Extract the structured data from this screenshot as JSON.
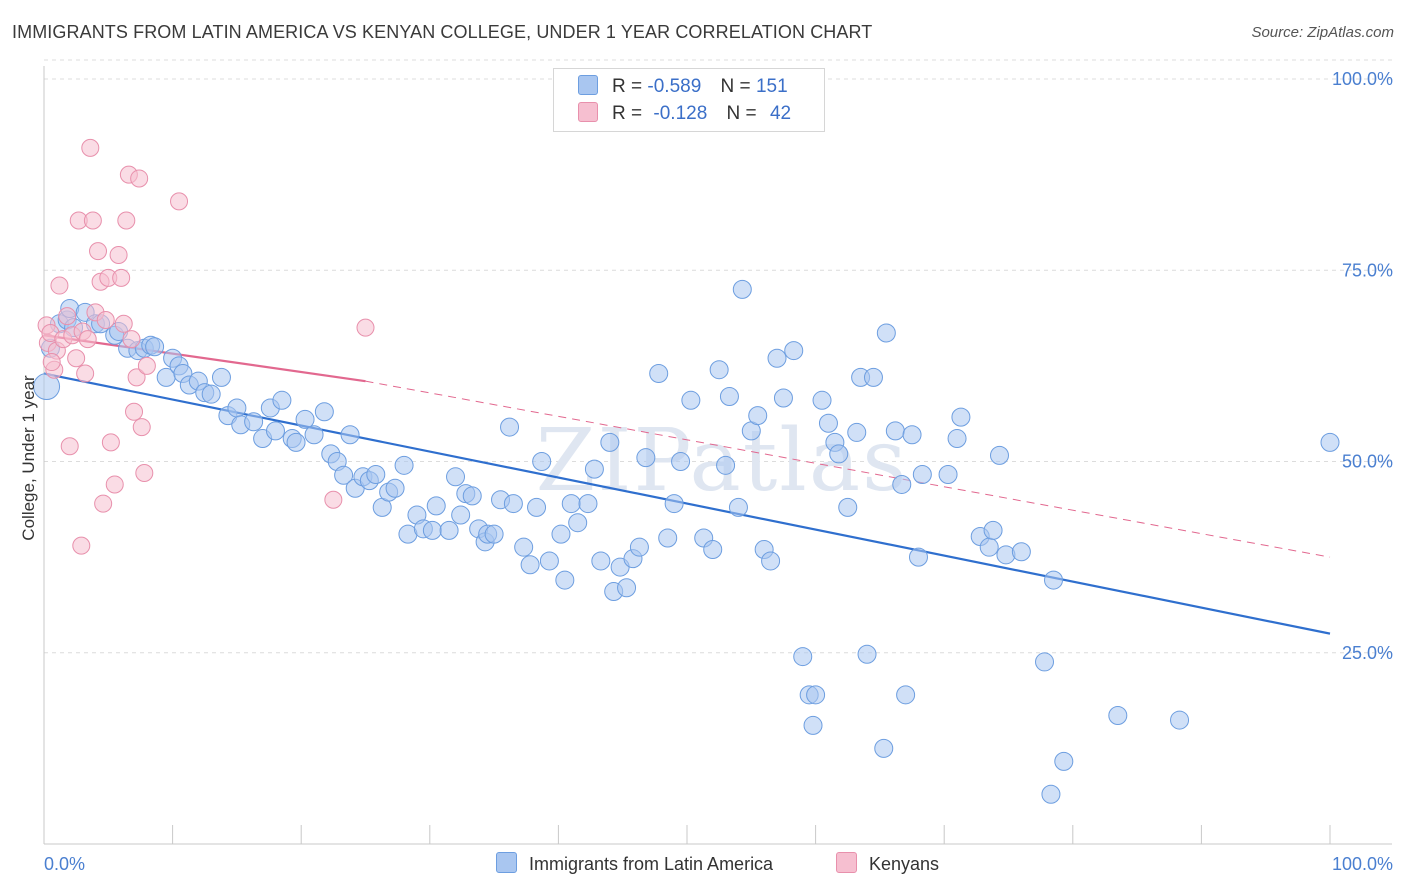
{
  "header": {
    "title": "IMMIGRANTS FROM LATIN AMERICA VS KENYAN COLLEGE, UNDER 1 YEAR CORRELATION CHART",
    "source": "Source: ZipAtlas.com"
  },
  "watermark": "ZIPatlas",
  "legend": {
    "rows": [
      {
        "r_label": "R =",
        "r_value": "-0.589",
        "n_label": "N =",
        "n_value": "151",
        "color": "#a9c6f0"
      },
      {
        "r_label": "R =",
        "r_value": "-0.128",
        "n_label": "N =",
        "n_value": "42",
        "color": "#f4b8cb"
      }
    ]
  },
  "bottom_legend": {
    "series1": "Immigrants from Latin America",
    "series2": "Kenyans"
  },
  "colors": {
    "blue_fill": "#a9c6f0",
    "blue_stroke": "#6d9ee0",
    "blue_line": "#2f6fce",
    "pink_fill": "#f6bfd0",
    "pink_stroke": "#e890ac",
    "pink_line": "#e2688f",
    "axis_text": "#4a7fd0"
  },
  "chart_data": {
    "type": "scatter",
    "title": "IMMIGRANTS FROM LATIN AMERICA VS KENYAN COLLEGE, UNDER 1 YEAR CORRELATION CHART",
    "xlabel": "",
    "ylabel": "College, Under 1 year",
    "xlim": [
      0,
      100
    ],
    "ylim": [
      0,
      105
    ],
    "x_tick_labels": [
      "0.0%",
      "100.0%"
    ],
    "y_ticks": [
      25,
      50,
      75,
      100
    ],
    "y_tick_labels": [
      "25.0%",
      "50.0%",
      "75.0%",
      "100.0%"
    ],
    "grid": "horizontal dashed",
    "legend_position": "top-center",
    "series": [
      {
        "name": "Immigrants from Latin America",
        "color": "#a9c6f0",
        "trend": {
          "x": [
            0,
            100
          ],
          "y": [
            61.5,
            27.5
          ]
        },
        "points": [
          [
            0.2,
            59.8
          ],
          [
            0.5,
            64.8
          ],
          [
            1.2,
            68
          ],
          [
            1.8,
            68.5
          ],
          [
            2.0,
            70
          ],
          [
            2.3,
            67.5
          ],
          [
            3.2,
            69.5
          ],
          [
            4.0,
            68
          ],
          [
            4.4,
            68
          ],
          [
            5.5,
            66.5
          ],
          [
            5.8,
            67
          ],
          [
            6.5,
            64.8
          ],
          [
            7.3,
            64.5
          ],
          [
            7.8,
            64.8
          ],
          [
            8.3,
            65.2
          ],
          [
            8.6,
            65
          ],
          [
            9.5,
            61
          ],
          [
            10,
            63.5
          ],
          [
            10.5,
            62.5
          ],
          [
            10.8,
            61.5
          ],
          [
            11.3,
            60
          ],
          [
            12.0,
            60.5
          ],
          [
            12.5,
            59
          ],
          [
            13.0,
            58.8
          ],
          [
            13.8,
            61
          ],
          [
            14.3,
            56
          ],
          [
            15.0,
            57
          ],
          [
            15.3,
            54.8
          ],
          [
            16.3,
            55.2
          ],
          [
            17.0,
            53
          ],
          [
            17.6,
            57
          ],
          [
            18.0,
            54
          ],
          [
            18.5,
            58
          ],
          [
            19.3,
            53
          ],
          [
            19.6,
            52.5
          ],
          [
            20.3,
            55.5
          ],
          [
            21,
            53.5
          ],
          [
            21.8,
            56.5
          ],
          [
            22.3,
            51
          ],
          [
            22.8,
            50
          ],
          [
            23.3,
            48.2
          ],
          [
            23.8,
            53.5
          ],
          [
            24.2,
            46.5
          ],
          [
            24.8,
            48
          ],
          [
            25.3,
            47.5
          ],
          [
            25.8,
            48.3
          ],
          [
            26.3,
            44
          ],
          [
            26.8,
            46
          ],
          [
            27.3,
            46.5
          ],
          [
            28.0,
            49.5
          ],
          [
            28.3,
            40.5
          ],
          [
            29.0,
            43
          ],
          [
            29.5,
            41.2
          ],
          [
            30.2,
            41
          ],
          [
            30.5,
            44.2
          ],
          [
            31.5,
            41
          ],
          [
            32.0,
            48
          ],
          [
            32.4,
            43
          ],
          [
            32.8,
            45.8
          ],
          [
            33.3,
            45.5
          ],
          [
            33.8,
            41.2
          ],
          [
            34.3,
            39.5
          ],
          [
            34.5,
            40.5
          ],
          [
            35.0,
            40.5
          ],
          [
            35.5,
            45
          ],
          [
            36.2,
            54.5
          ],
          [
            36.5,
            44.5
          ],
          [
            37.3,
            38.8
          ],
          [
            37.8,
            36.5
          ],
          [
            38.3,
            44
          ],
          [
            38.7,
            50
          ],
          [
            39.3,
            37
          ],
          [
            40.2,
            40.5
          ],
          [
            40.5,
            34.5
          ],
          [
            41.0,
            44.5
          ],
          [
            41.5,
            42
          ],
          [
            42.3,
            44.5
          ],
          [
            42.8,
            49
          ],
          [
            43.3,
            37
          ],
          [
            44.0,
            52.5
          ],
          [
            44.3,
            33
          ],
          [
            44.8,
            36.2
          ],
          [
            45.3,
            33.5
          ],
          [
            45.8,
            37.3
          ],
          [
            46.3,
            38.8
          ],
          [
            46.8,
            50.5
          ],
          [
            47.8,
            61.5
          ],
          [
            48.5,
            40
          ],
          [
            49.0,
            44.5
          ],
          [
            49.5,
            50
          ],
          [
            50.3,
            58
          ],
          [
            51.3,
            40
          ],
          [
            52.0,
            38.5
          ],
          [
            52.5,
            62
          ],
          [
            53.0,
            49.5
          ],
          [
            53.3,
            58.5
          ],
          [
            54.0,
            44
          ],
          [
            54.3,
            72.5
          ],
          [
            55.0,
            54
          ],
          [
            55.5,
            56
          ],
          [
            56.0,
            38.5
          ],
          [
            56.5,
            37
          ],
          [
            57.0,
            63.5
          ],
          [
            57.5,
            58.3
          ],
          [
            58.3,
            64.5
          ],
          [
            59.0,
            24.5
          ],
          [
            59.5,
            19.5
          ],
          [
            59.8,
            15.5
          ],
          [
            60.0,
            19.5
          ],
          [
            60.5,
            58
          ],
          [
            61.0,
            55
          ],
          [
            61.5,
            52.5
          ],
          [
            61.8,
            51
          ],
          [
            62.5,
            44
          ],
          [
            63.2,
            53.8
          ],
          [
            63.5,
            61
          ],
          [
            64.0,
            24.8
          ],
          [
            64.5,
            61
          ],
          [
            65.3,
            12.5
          ],
          [
            65.5,
            66.8
          ],
          [
            66.2,
            54
          ],
          [
            66.7,
            47
          ],
          [
            67.0,
            19.5
          ],
          [
            67.5,
            53.5
          ],
          [
            68.0,
            37.5
          ],
          [
            68.3,
            48.3
          ],
          [
            70.3,
            48.3
          ],
          [
            71,
            53
          ],
          [
            71.3,
            55.8
          ],
          [
            72.8,
            40.2
          ],
          [
            73.5,
            38.8
          ],
          [
            73.8,
            41
          ],
          [
            74.3,
            50.8
          ],
          [
            74.8,
            37.8
          ],
          [
            76.0,
            38.2
          ],
          [
            77.8,
            23.8
          ],
          [
            78.3,
            6.5
          ],
          [
            78.5,
            34.5
          ],
          [
            79.3,
            10.8
          ],
          [
            83.5,
            16.8
          ],
          [
            88.3,
            16.2
          ],
          [
            100,
            52.5
          ]
        ]
      },
      {
        "name": "Kenyans",
        "color": "#f6bfd0",
        "trend": {
          "x": [
            0,
            25
          ],
          "y": [
            66.5,
            60.5
          ]
        },
        "trend_dashed": {
          "x": [
            25,
            100
          ],
          "y": [
            60.5,
            37.5
          ]
        },
        "points": [
          [
            0.2,
            67.8
          ],
          [
            0.3,
            65.5
          ],
          [
            0.5,
            66.8
          ],
          [
            0.8,
            62
          ],
          [
            1.0,
            64.5
          ],
          [
            1.2,
            73
          ],
          [
            1.5,
            66
          ],
          [
            1.8,
            69
          ],
          [
            2.0,
            52
          ],
          [
            2.2,
            66.5
          ],
          [
            2.5,
            63.5
          ],
          [
            2.7,
            81.5
          ],
          [
            2.9,
            39
          ],
          [
            3.0,
            67
          ],
          [
            3.2,
            61.5
          ],
          [
            3.4,
            66
          ],
          [
            3.6,
            91
          ],
          [
            3.8,
            81.5
          ],
          [
            4.0,
            69.5
          ],
          [
            4.2,
            77.5
          ],
          [
            4.4,
            73.5
          ],
          [
            4.6,
            44.5
          ],
          [
            4.8,
            68.5
          ],
          [
            5.0,
            74
          ],
          [
            5.2,
            52.5
          ],
          [
            5.5,
            47
          ],
          [
            5.8,
            77
          ],
          [
            6.0,
            74
          ],
          [
            6.2,
            68
          ],
          [
            6.4,
            81.5
          ],
          [
            6.6,
            87.5
          ],
          [
            6.8,
            66
          ],
          [
            7.0,
            56.5
          ],
          [
            7.2,
            61
          ],
          [
            7.4,
            87
          ],
          [
            7.6,
            54.5
          ],
          [
            7.8,
            48.5
          ],
          [
            8.0,
            62.5
          ],
          [
            10.5,
            84
          ],
          [
            22.5,
            45
          ],
          [
            25.0,
            67.5
          ],
          [
            0.6,
            63
          ]
        ]
      }
    ]
  }
}
